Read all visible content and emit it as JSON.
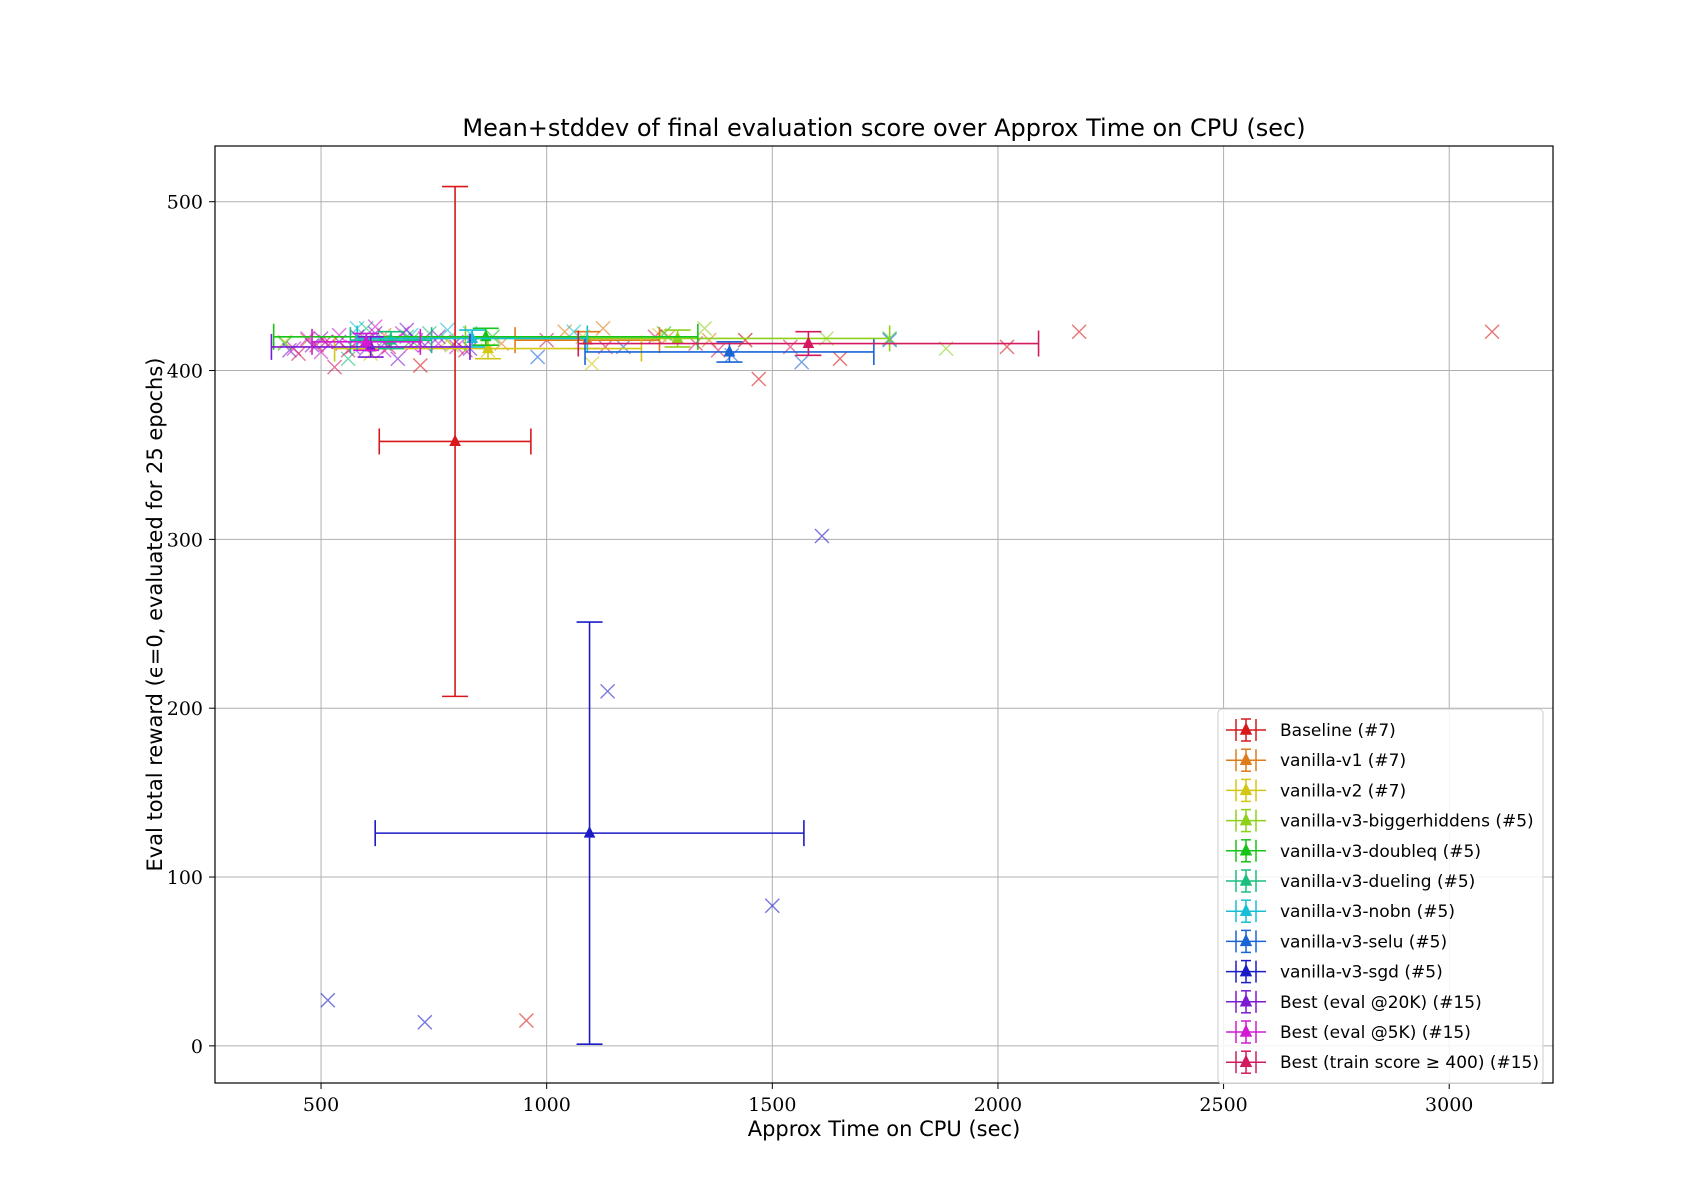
{
  "chart_data": {
    "type": "scatter",
    "title": "Mean+stddev of final evaluation score over Approx Time on CPU (sec)",
    "xlabel": "Approx Time on CPU (sec)",
    "ylabel": "Eval total reward (ϵ=0, evaluated for 25 epochs)",
    "xlim": [
      265,
      3230
    ],
    "ylim": [
      -22,
      533
    ],
    "xticks": [
      500,
      1000,
      1500,
      2000,
      2500,
      3000
    ],
    "yticks": [
      0,
      100,
      200,
      300,
      400,
      500
    ],
    "grid": true,
    "legend_position": "lower-right",
    "series": [
      {
        "name": "Baseline (#7)",
        "color": "#d7191c",
        "mean": {
          "x": 797,
          "y": 358,
          "xerr": 168,
          "yerr": 151
        },
        "points": [
          [
            955,
            15
          ],
          [
            720,
            403
          ],
          [
            1470,
            395
          ],
          [
            1650,
            407
          ],
          [
            2180,
            423
          ],
          [
            3095,
            423
          ],
          [
            2020,
            414
          ]
        ]
      },
      {
        "name": "vanilla-v1 (#7)",
        "color": "#e07b1a",
        "mean": {
          "x": 1090,
          "y": 418,
          "xerr": 160,
          "yerr": 5
        },
        "points": [
          [
            470,
            418
          ],
          [
            640,
            421
          ],
          [
            900,
            416
          ],
          [
            1040,
            423
          ],
          [
            1125,
            425
          ],
          [
            1270,
            420
          ],
          [
            1360,
            418
          ]
        ]
      },
      {
        "name": "vanilla-v2 (#7)",
        "color": "#d4c614",
        "mean": {
          "x": 870,
          "y": 413,
          "xerr": 340,
          "yerr": 6
        },
        "points": [
          [
            420,
            417
          ],
          [
            610,
            410
          ],
          [
            780,
            418
          ],
          [
            870,
            412
          ],
          [
            1100,
            404
          ],
          [
            1250,
            421
          ],
          [
            1440,
            418
          ]
        ]
      },
      {
        "name": "vanilla-v3-biggerhiddens (#5)",
        "color": "#8ed11b",
        "mean": {
          "x": 1290,
          "y": 419,
          "xerr": 470,
          "yerr": 5
        },
        "points": [
          [
            790,
            415
          ],
          [
            1080,
            420
          ],
          [
            1350,
            425
          ],
          [
            1620,
            419
          ],
          [
            1885,
            413
          ]
        ]
      },
      {
        "name": "vanilla-v3-doubleq (#5)",
        "color": "#17c417",
        "mean": {
          "x": 865,
          "y": 420,
          "xerr": 470,
          "yerr": 5
        },
        "points": [
          [
            420,
            416
          ],
          [
            700,
            418
          ],
          [
            880,
            420
          ],
          [
            1260,
            422
          ],
          [
            1760,
            419
          ]
        ]
      },
      {
        "name": "vanilla-v3-dueling (#5)",
        "color": "#1bbf7d",
        "mean": {
          "x": 655,
          "y": 418,
          "xerr": 90,
          "yerr": 5
        },
        "points": [
          [
            560,
            407
          ],
          [
            640,
            418
          ],
          [
            690,
            420
          ],
          [
            740,
            422
          ],
          [
            600,
            425
          ]
        ]
      },
      {
        "name": "vanilla-v3-nobn (#5)",
        "color": "#17bfd4",
        "mean": {
          "x": 835,
          "y": 419,
          "xerr": 255,
          "yerr": 5
        },
        "points": [
          [
            580,
            425
          ],
          [
            700,
            421
          ],
          [
            780,
            424
          ],
          [
            830,
            422
          ],
          [
            1060,
            423
          ]
        ]
      },
      {
        "name": "vanilla-v3-selu (#5)",
        "color": "#1a64d6",
        "mean": {
          "x": 1405,
          "y": 411,
          "xerr": 320,
          "yerr": 6
        },
        "points": [
          [
            980,
            408
          ],
          [
            1170,
            414
          ],
          [
            1410,
            409
          ],
          [
            1565,
            405
          ],
          [
            1760,
            418
          ]
        ]
      },
      {
        "name": "vanilla-v3-sgd (#5)",
        "color": "#1c1cc6",
        "mean": {
          "x": 1095,
          "y": 126,
          "xerr": 475,
          "yerr": 125
        },
        "points": [
          [
            515,
            27
          ],
          [
            730,
            14
          ],
          [
            1135,
            210
          ],
          [
            1500,
            83
          ],
          [
            1610,
            302
          ]
        ]
      },
      {
        "name": "Best (eval @20K) (#15)",
        "color": "#7a1ad1",
        "mean": {
          "x": 610,
          "y": 414,
          "xerr": 220,
          "yerr": 6
        },
        "points": [
          [
            430,
            412
          ],
          [
            480,
            415
          ],
          [
            500,
            419
          ],
          [
            540,
            417
          ],
          [
            580,
            420
          ],
          [
            600,
            413
          ],
          [
            620,
            422
          ],
          [
            640,
            416
          ],
          [
            670,
            407
          ],
          [
            690,
            424
          ],
          [
            710,
            418
          ],
          [
            730,
            415
          ],
          [
            760,
            420
          ],
          [
            800,
            417
          ],
          [
            830,
            413
          ]
        ]
      },
      {
        "name": "Best (eval @5K) (#15)",
        "color": "#d11ad1",
        "mean": {
          "x": 600,
          "y": 417,
          "xerr": 120,
          "yerr": 5
        },
        "points": [
          [
            440,
            413
          ],
          [
            470,
            419
          ],
          [
            500,
            411
          ],
          [
            520,
            416
          ],
          [
            540,
            421
          ],
          [
            570,
            414
          ],
          [
            590,
            418
          ],
          [
            620,
            426
          ],
          [
            640,
            412
          ],
          [
            660,
            417
          ],
          [
            680,
            422
          ],
          [
            700,
            415
          ],
          [
            730,
            419
          ],
          [
            760,
            416
          ],
          [
            800,
            414
          ]
        ]
      },
      {
        "name": "Best (train score ≥ 400) (#15)",
        "color": "#d41a5e",
        "mean": {
          "x": 1580,
          "y": 416,
          "xerr": 510,
          "yerr": 7
        },
        "points": [
          [
            450,
            410
          ],
          [
            490,
            415
          ],
          [
            510,
            417
          ],
          [
            530,
            402
          ],
          [
            560,
            412
          ],
          [
            600,
            418
          ],
          [
            650,
            414
          ],
          [
            820,
            412
          ],
          [
            1000,
            418
          ],
          [
            1130,
            414
          ],
          [
            1240,
            420
          ],
          [
            1330,
            416
          ],
          [
            1380,
            412
          ],
          [
            1440,
            418
          ],
          [
            1540,
            414
          ]
        ]
      }
    ]
  }
}
